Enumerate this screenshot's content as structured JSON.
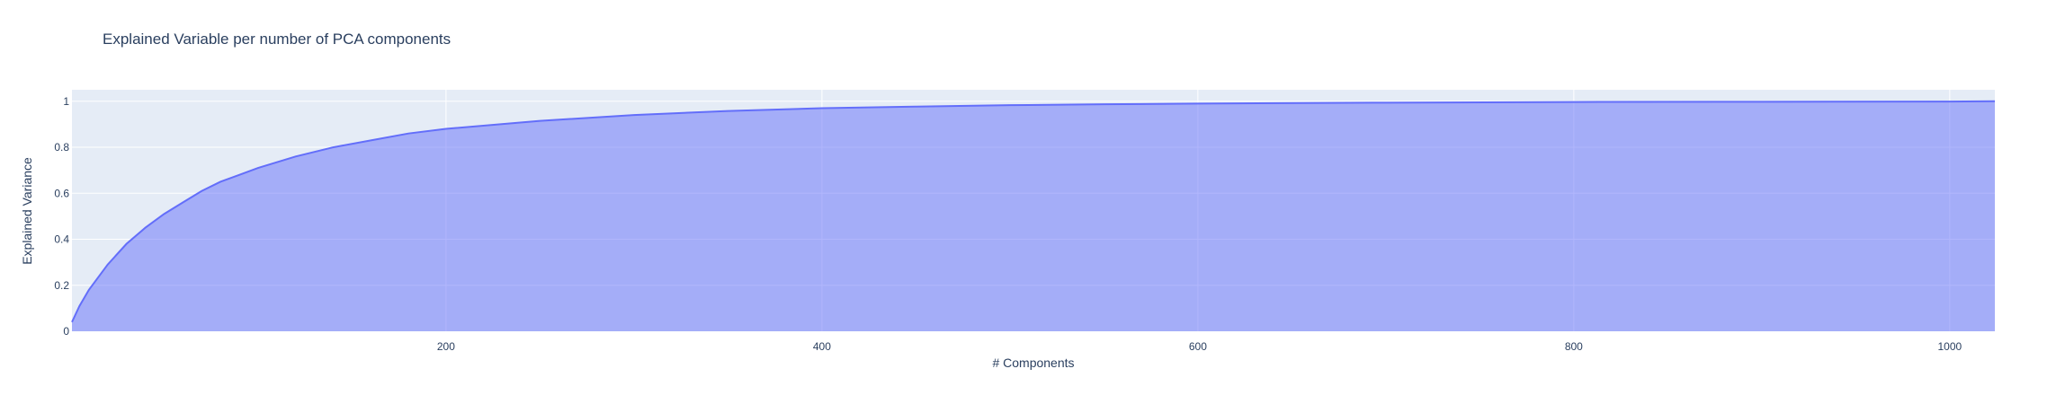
{
  "chart_data": {
    "type": "area",
    "title": "Explained Variable per number of PCA components",
    "xlabel": "# Components",
    "ylabel": "Explained Variance",
    "xlim": [
      1,
      1024
    ],
    "ylim": [
      0,
      1.05
    ],
    "x_ticks": [
      200,
      400,
      600,
      800,
      1000
    ],
    "y_ticks": [
      0,
      0.2,
      0.4,
      0.6,
      0.8,
      1
    ],
    "y_tick_labels": [
      "0",
      "0.2",
      "0.4",
      "0.6",
      "0.8",
      "1"
    ],
    "grid": true,
    "legend": "none",
    "colors": {
      "plot_bg": "#e5ecf6",
      "line": "#636efa",
      "fill": "rgba(99,110,250,0.5)",
      "grid": "#ffffff"
    },
    "series": [
      {
        "x": [
          1,
          5,
          10,
          20,
          30,
          40,
          50,
          60,
          70,
          80,
          90,
          100,
          120,
          140,
          160,
          180,
          200,
          250,
          300,
          350,
          400,
          450,
          500,
          550,
          600,
          700,
          800,
          900,
          1000,
          1024
        ],
        "values": [
          0.04,
          0.11,
          0.18,
          0.29,
          0.38,
          0.45,
          0.51,
          0.56,
          0.61,
          0.65,
          0.68,
          0.71,
          0.76,
          0.8,
          0.83,
          0.86,
          0.88,
          0.915,
          0.94,
          0.958,
          0.97,
          0.977,
          0.983,
          0.987,
          0.99,
          0.994,
          0.997,
          0.998,
          0.999,
          1.0
        ]
      }
    ]
  }
}
